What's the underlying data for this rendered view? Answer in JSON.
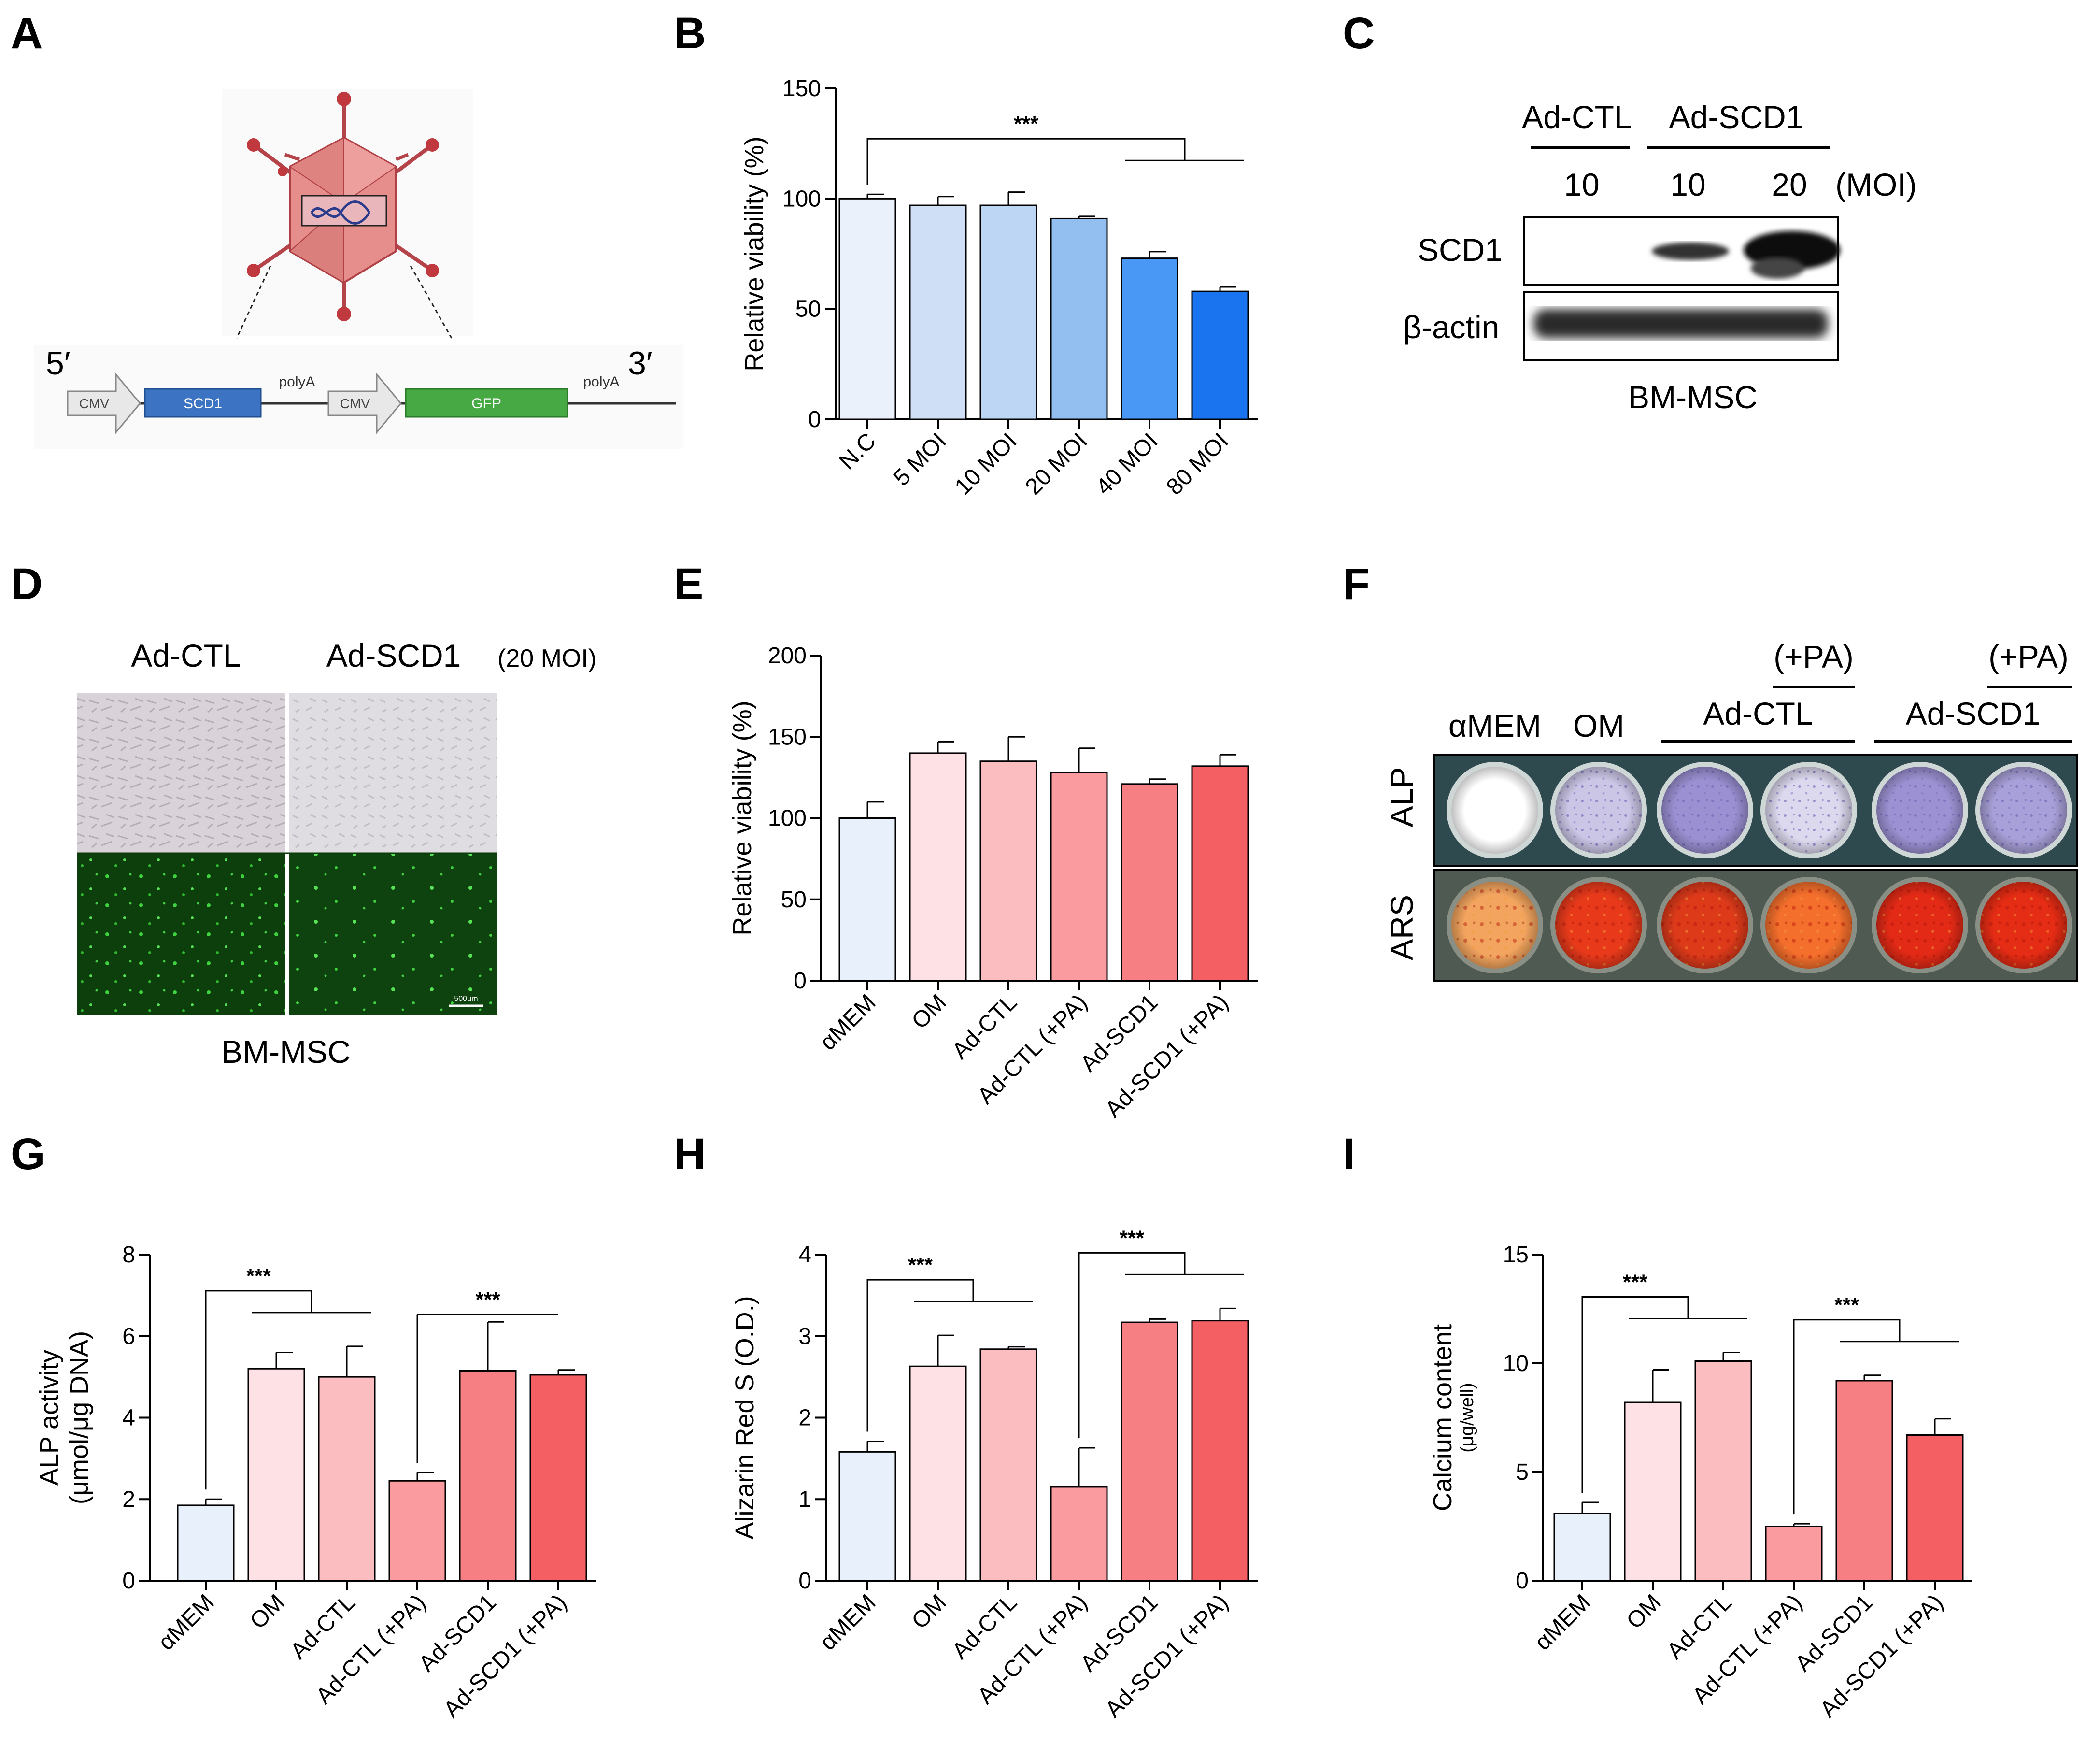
{
  "panel_letters": [
    "A",
    "B",
    "C",
    "D",
    "E",
    "F",
    "G",
    "H",
    "I"
  ],
  "colors": {
    "blue_series": [
      "#eaf1fb",
      "#cfe0f6",
      "#bcd6f4",
      "#93bff0",
      "#4a98f6",
      "#1a73ef"
    ],
    "red_series": [
      "#e8f0fb",
      "#fde1e4",
      "#fcbdc1",
      "#fa9ba0",
      "#f67f84",
      "#f45f63"
    ],
    "well_alp": [
      "#ffffff",
      "#cbc6e6",
      "#9a90d2",
      "#dcd8ee",
      "#9c92d3",
      "#a8a0d8"
    ],
    "well_ars": [
      "#f3a55f",
      "#e83a1b",
      "#dd3a1a",
      "#f56f2c",
      "#e32a16",
      "#e52c14"
    ]
  },
  "panel_a": {
    "five_prime": "5′",
    "three_prime": "3′",
    "cmv1": "CMV",
    "gene1": "SCD1",
    "polya1": "polyA",
    "cmv2": "CMV",
    "gene2": "GFP",
    "polya2": "polyA"
  },
  "panel_c": {
    "group1": "Ad-CTL",
    "group2": "Ad-SCD1",
    "moi_values": [
      "10",
      "10",
      "20"
    ],
    "moi_unit": "(MOI)",
    "row1": "SCD1",
    "row2": "β-actin",
    "cell": "BM-MSC"
  },
  "panel_d": {
    "col1": "Ad-CTL",
    "col2": "Ad-SCD1",
    "moi": "(20 MOI)",
    "scale": "500μm",
    "cell": "BM-MSC"
  },
  "panel_f": {
    "col_amem": "αMEM",
    "col_om": "OM",
    "pa1": "(+PA)",
    "pa2": "(+PA)",
    "grp1": "Ad-CTL",
    "grp2": "Ad-SCD1",
    "row1": "ALP",
    "row2": "ARS"
  },
  "chart_data": [
    {
      "panel": "B",
      "type": "bar",
      "categories": [
        "N.C",
        "5 MOI",
        "10 MOI",
        "20 MOI",
        "40 MOI",
        "80 MOI"
      ],
      "values": [
        100,
        97,
        97,
        91,
        73,
        58
      ],
      "errors": [
        2,
        4,
        6,
        1,
        3,
        2
      ],
      "ylabel": "Relative viability (%)",
      "xlabel": "",
      "ylim": [
        0,
        150
      ],
      "yticks": [
        0,
        50,
        100,
        150
      ],
      "significance": [
        {
          "label": "***",
          "from": 0,
          "to": [
            4,
            5
          ]
        }
      ],
      "grid": false,
      "legend": "none"
    },
    {
      "panel": "E",
      "type": "bar",
      "categories": [
        "αMEM",
        "OM",
        "Ad-CTL",
        "Ad-CTL (+PA)",
        "Ad-SCD1",
        "Ad-SCD1 (+PA)"
      ],
      "values": [
        100,
        140,
        135,
        128,
        121,
        132
      ],
      "errors": [
        10,
        7,
        15,
        15,
        3,
        7
      ],
      "ylabel": "Relative viability (%)",
      "xlabel": "",
      "ylim": [
        0,
        200
      ],
      "yticks": [
        0,
        50,
        100,
        150,
        200
      ],
      "significance": [],
      "grid": false,
      "legend": "none"
    },
    {
      "panel": "G",
      "type": "bar",
      "categories": [
        "αMEM",
        "OM",
        "Ad-CTL",
        "Ad-CTL (+PA)",
        "Ad-SCD1",
        "Ad-SCD1 (+PA)"
      ],
      "values": [
        1.85,
        5.2,
        5.0,
        2.45,
        5.15,
        5.05
      ],
      "errors": [
        0.15,
        0.4,
        0.75,
        0.2,
        1.2,
        0.12
      ],
      "ylabel": "ALP activity",
      "ylabel2": "(μmol/μg DNA)",
      "xlabel": "",
      "ylim": [
        0,
        8
      ],
      "yticks": [
        0,
        2,
        4,
        6,
        8
      ],
      "significance": [
        {
          "label": "***",
          "from": 0,
          "to": [
            1,
            2
          ]
        },
        {
          "label": "***",
          "from": 3,
          "to": [
            5
          ]
        }
      ],
      "grid": false,
      "legend": "none"
    },
    {
      "panel": "H",
      "type": "bar",
      "categories": [
        "αMEM",
        "OM",
        "Ad-CTL",
        "Ad-CTL (+PA)",
        "Ad-SCD1",
        "Ad-SCD1 (+PA)"
      ],
      "values": [
        1.58,
        2.63,
        2.84,
        1.15,
        3.17,
        3.19
      ],
      "errors": [
        0.13,
        0.38,
        0.03,
        0.48,
        0.04,
        0.15
      ],
      "ylabel": "Alizarin Red S (O.D.)",
      "xlabel": "",
      "ylim": [
        0,
        4
      ],
      "yticks": [
        0,
        1,
        2,
        3,
        4
      ],
      "significance": [
        {
          "label": "***",
          "from": 0,
          "to": [
            1,
            2
          ]
        },
        {
          "label": "***",
          "from": 3,
          "to": [
            4,
            5
          ]
        }
      ],
      "grid": false,
      "legend": "none"
    },
    {
      "panel": "I",
      "type": "bar",
      "categories": [
        "αMEM",
        "OM",
        "Ad-CTL",
        "Ad-CTL (+PA)",
        "Ad-SCD1",
        "Ad-SCD1 (+PA)"
      ],
      "values": [
        3.1,
        8.2,
        10.1,
        2.5,
        9.2,
        6.7
      ],
      "errors": [
        0.5,
        1.5,
        0.4,
        0.12,
        0.25,
        0.75
      ],
      "ylabel": "Calcium content",
      "ylabel2": "(μg/well)",
      "xlabel": "",
      "ylim": [
        0,
        15
      ],
      "yticks": [
        0,
        5,
        10,
        15
      ],
      "significance": [
        {
          "label": "***",
          "from": 0,
          "to": [
            1,
            2
          ]
        },
        {
          "label": "***",
          "from": 3,
          "to": [
            4,
            5
          ]
        }
      ],
      "grid": false,
      "legend": "none"
    }
  ]
}
